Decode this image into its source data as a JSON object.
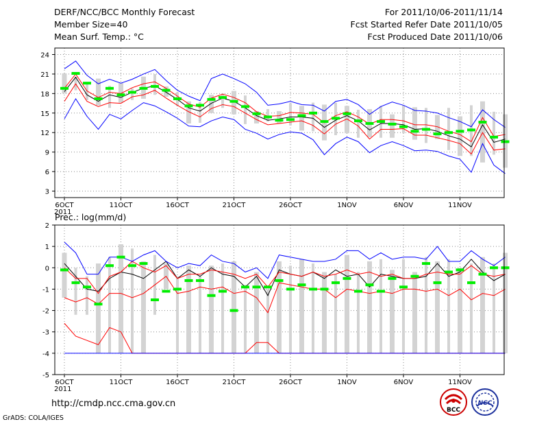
{
  "header": {
    "left": [
      "DERF/NCC/BCC Monthly Forecast",
      "Member Size=40",
      "Mean Surf. Temp.: °C"
    ],
    "right": [
      "For 2011/10/06-2011/11/14",
      "Fcst Started Refer Date 2011/10/05",
      "Fcst Produced Date 2011/10/06"
    ]
  },
  "footer": {
    "url": "http://cmdp.ncc.cma.gov.cn",
    "credit": "GrADS: COLA/IGES"
  },
  "logos": {
    "bcc": "BCC",
    "ncc": "NCC"
  },
  "colors": {
    "box": "#d3d3d3",
    "mean": "#000000",
    "spread": "#ff0000",
    "envelope": "#0000ff",
    "obs": "#00ee00"
  },
  "chart_data": [
    {
      "type": "line",
      "title": "Mean Surf. Temp.: °C",
      "x_tick_labels": [
        "6OCT",
        "11OCT",
        "16OCT",
        "21OCT",
        "26OCT",
        "1NOV",
        "6NOV",
        "11NOV"
      ],
      "x_tick_days": [
        0,
        5,
        10,
        15,
        20,
        25,
        30,
        35
      ],
      "x_year_label": "2011",
      "y_ticks": [
        "3",
        "6",
        "9",
        "12",
        "15",
        "18",
        "21",
        "24"
      ],
      "ylim": [
        2,
        25
      ],
      "days": [
        0,
        1,
        2,
        3,
        4,
        5,
        6,
        7,
        8,
        9,
        10,
        11,
        12,
        13,
        14,
        15,
        16,
        17,
        18,
        19,
        20,
        21,
        22,
        23,
        24,
        25,
        26,
        27,
        28,
        29,
        30,
        31,
        32,
        33,
        34,
        35,
        36,
        37,
        38,
        39
      ],
      "series": [
        {
          "name": "mean",
          "values": [
            18.3,
            20.5,
            17.8,
            16.8,
            17.8,
            17.4,
            18.2,
            18.8,
            19.2,
            18.2,
            17.1,
            15.8,
            15.3,
            16.5,
            17.3,
            16.8,
            15.8,
            14.6,
            13.9,
            14.1,
            14.4,
            14.4,
            14.2,
            12.8,
            13.9,
            14.6,
            13.8,
            12.4,
            13.4,
            13.4,
            13.2,
            12.5,
            12.6,
            12.2,
            11.5,
            11.0,
            9.8,
            13.2,
            10.5,
            11.0
          ]
        },
        {
          "name": "upper-spread",
          "values": [
            18.8,
            21.0,
            18.4,
            17.4,
            18.2,
            18.0,
            18.9,
            19.5,
            19.8,
            18.8,
            17.6,
            16.4,
            15.9,
            17.3,
            17.9,
            17.4,
            16.6,
            15.2,
            14.5,
            14.6,
            15.1,
            15.0,
            14.8,
            13.5,
            14.6,
            15.2,
            14.4,
            13.3,
            14.0,
            14.0,
            13.8,
            13.2,
            13.2,
            12.9,
            12.2,
            11.7,
            10.6,
            14.3,
            11.4,
            11.7
          ]
        },
        {
          "name": "lower-spread",
          "values": [
            16.8,
            19.5,
            16.8,
            16.0,
            16.6,
            16.5,
            17.5,
            17.8,
            18.5,
            17.3,
            16.2,
            15.2,
            14.4,
            15.7,
            16.3,
            16.0,
            15.0,
            14.0,
            13.2,
            13.4,
            13.6,
            13.8,
            13.1,
            11.8,
            13.3,
            14.1,
            13.0,
            11.0,
            12.5,
            12.5,
            12.6,
            11.6,
            11.6,
            11.2,
            10.8,
            10.3,
            8.7,
            12.0,
            9.3,
            9.5
          ]
        },
        {
          "name": "max-envelope",
          "values": [
            21.8,
            23.0,
            20.8,
            19.5,
            20.2,
            19.6,
            20.2,
            21.0,
            21.7,
            20.0,
            18.5,
            17.6,
            16.9,
            20.3,
            21.0,
            20.3,
            19.5,
            18.2,
            16.2,
            16.4,
            16.8,
            16.3,
            16.2,
            15.3,
            16.8,
            17.1,
            16.3,
            14.8,
            16.0,
            16.7,
            16.2,
            15.4,
            15.3,
            15.0,
            14.3,
            13.7,
            12.9,
            15.5,
            14.0,
            12.8
          ]
        },
        {
          "name": "min-envelope",
          "values": [
            14.1,
            17.2,
            14.5,
            12.5,
            14.8,
            14.1,
            15.4,
            16.6,
            16.1,
            15.2,
            14.2,
            13.0,
            12.9,
            13.8,
            14.4,
            14.0,
            12.5,
            11.9,
            11.0,
            11.7,
            12.1,
            11.9,
            10.9,
            8.6,
            10.3,
            11.3,
            10.6,
            8.9,
            10.0,
            10.6,
            10.0,
            9.2,
            9.3,
            9.1,
            8.4,
            7.9,
            5.9,
            10.3,
            7.0,
            5.7
          ]
        }
      ],
      "boxes": {
        "low": [
          18.0,
          18.5,
          17.0,
          16.2,
          15.8,
          16.6,
          17.0,
          17.2,
          17.8,
          17.5,
          16.1,
          13.4,
          13.5,
          15.0,
          15.8,
          14.8,
          13.3,
          13.4,
          13.7,
          13.4,
          13.1,
          12.3,
          12.2,
          10.8,
          11.6,
          11.9,
          11.2,
          11.3,
          11.2,
          11.2,
          11.9,
          10.9,
          10.4,
          11.0,
          9.3,
          8.4,
          8.4,
          7.4,
          8.6,
          6.6
        ],
        "high": [
          21.1,
          20.6,
          19.6,
          20.3,
          19.2,
          19.6,
          18.8,
          20.6,
          21.0,
          19.1,
          18.2,
          16.8,
          16.7,
          17.8,
          18.0,
          18.4,
          17.7,
          15.3,
          15.6,
          15.3,
          16.5,
          16.1,
          16.6,
          16.3,
          16.6,
          16.1,
          15.5,
          15.6,
          16.1,
          14.8,
          16.2,
          15.9,
          15.8,
          14.7,
          15.8,
          14.5,
          16.2,
          16.8,
          15.2,
          14.8
        ],
        "wide": [
          1,
          0,
          0,
          1,
          0,
          1,
          0,
          1,
          0,
          1,
          0,
          1,
          0,
          1,
          0,
          1,
          0,
          1,
          0,
          1,
          0,
          1,
          0,
          1,
          0,
          1,
          0,
          1,
          0,
          1,
          0,
          1,
          0,
          1,
          0,
          1,
          0,
          1,
          0,
          1
        ]
      },
      "observed": {
        "days": [
          0,
          1,
          2,
          3,
          4,
          5,
          6,
          7,
          8,
          9,
          10,
          11,
          12,
          13,
          14,
          15,
          16,
          17,
          18,
          19,
          20,
          21,
          22,
          23,
          24,
          25,
          26,
          27,
          28,
          29,
          30,
          31,
          32,
          33,
          34,
          35,
          36,
          37,
          38,
          39
        ],
        "values": [
          18.8,
          21.1,
          19.6,
          17.2,
          18.8,
          17.8,
          18.2,
          18.8,
          19.1,
          18.5,
          17.2,
          16.1,
          16.2,
          17.1,
          17.4,
          16.8,
          16.0,
          14.9,
          14.4,
          13.9,
          14.0,
          14.6,
          15.0,
          13.7,
          14.2,
          14.9,
          13.8,
          13.4,
          13.7,
          13.3,
          12.9,
          12.2,
          12.5,
          11.8,
          12.0,
          12.2,
          12.4,
          13.6,
          11.3,
          10.6
        ]
      }
    },
    {
      "type": "line",
      "title": "Prec.: log(mm/d)",
      "x_tick_labels": [
        "6OCT",
        "11OCT",
        "16OCT",
        "21OCT",
        "26OCT",
        "1NOV",
        "6NOV",
        "11NOV"
      ],
      "x_tick_days": [
        0,
        5,
        10,
        15,
        20,
        25,
        30,
        35
      ],
      "x_year_label": "2011",
      "y_ticks": [
        "-5",
        "-4",
        "-3",
        "-2",
        "-1",
        "0",
        "1",
        "2"
      ],
      "ylim": [
        -5,
        2
      ],
      "days": [
        0,
        1,
        2,
        3,
        4,
        5,
        6,
        7,
        8,
        9,
        10,
        11,
        12,
        13,
        14,
        15,
        16,
        17,
        18,
        19,
        20,
        21,
        22,
        23,
        24,
        25,
        26,
        27,
        28,
        29,
        30,
        31,
        32,
        33,
        34,
        35,
        36,
        37,
        38,
        39
      ],
      "series": [
        {
          "name": "mean",
          "values": [
            0.2,
            -0.4,
            -1.0,
            -1.1,
            -0.5,
            -0.2,
            -0.3,
            -0.5,
            -0.1,
            0.3,
            -0.5,
            -0.1,
            -0.4,
            0.0,
            -0.3,
            -0.4,
            -0.9,
            -0.4,
            -1.3,
            -0.1,
            -0.3,
            -0.4,
            -0.2,
            -0.5,
            -0.1,
            -0.4,
            -0.3,
            -0.9,
            -0.3,
            -0.4,
            -0.5,
            -0.5,
            -0.4,
            0.2,
            -0.4,
            -0.2,
            0.4,
            -0.2,
            -0.6,
            -0.3
          ]
        },
        {
          "name": "upper-spread",
          "values": [
            0.0,
            -0.5,
            -0.5,
            -1.2,
            -0.4,
            -0.2,
            0.3,
            0.0,
            -0.2,
            0.1,
            -0.5,
            -0.3,
            -0.3,
            -0.1,
            -0.2,
            -0.3,
            -0.5,
            -0.3,
            -0.9,
            -0.2,
            -0.3,
            -0.4,
            -0.2,
            -0.4,
            -0.3,
            -0.1,
            -0.3,
            -0.2,
            -0.4,
            -0.3,
            -0.5,
            -0.5,
            -0.3,
            -0.2,
            -0.3,
            -0.3,
            0.1,
            -0.3,
            -0.4,
            -0.3
          ]
        },
        {
          "name": "lower-spread",
          "values": [
            -2.6,
            -3.2,
            -3.4,
            -3.6,
            -2.8,
            -3.0,
            -4.0,
            -4.0,
            -4.0,
            -4.0,
            -4.0,
            -4.0,
            -4.0,
            -4.0,
            -4.0,
            -4.0,
            -4.0,
            -3.5,
            -3.5,
            -4.0,
            -4.0,
            -4.0,
            -4.0,
            -4.0,
            -4.0,
            -4.0,
            -4.0,
            -4.0,
            -4.0,
            -4.0,
            -4.0,
            -4.0,
            -4.0,
            -4.0,
            -4.0,
            -4.0,
            -4.0,
            -4.0,
            -4.0,
            -4.0
          ]
        },
        {
          "name": "spread-inner",
          "values": [
            -1.4,
            -1.6,
            -1.4,
            -1.7,
            -1.2,
            -1.2,
            -1.4,
            -1.2,
            -0.8,
            -0.4,
            -1.2,
            -1.1,
            -0.9,
            -1.0,
            -0.9,
            -1.2,
            -1.1,
            -1.4,
            -2.1,
            -0.7,
            -0.8,
            -0.9,
            -1.0,
            -1.0,
            -1.4,
            -1.0,
            -1.1,
            -1.2,
            -1.1,
            -1.2,
            -1.0,
            -1.0,
            -1.1,
            -1.0,
            -1.3,
            -1.0,
            -1.5,
            -1.2,
            -1.3,
            -1.0
          ]
        },
        {
          "name": "max-envelope",
          "values": [
            1.2,
            0.7,
            -0.3,
            -0.3,
            0.5,
            0.5,
            0.3,
            0.6,
            0.8,
            0.3,
            0.0,
            0.2,
            0.1,
            0.6,
            0.3,
            0.2,
            -0.2,
            0.0,
            -0.5,
            0.6,
            0.5,
            0.4,
            0.3,
            0.3,
            0.4,
            0.8,
            0.8,
            0.4,
            0.7,
            0.4,
            0.5,
            0.5,
            0.4,
            1.0,
            0.3,
            0.3,
            0.8,
            0.4,
            0.1,
            0.5
          ]
        },
        {
          "name": "min-envelope",
          "values": [
            -4.0,
            -4.0,
            -4.0,
            -4.0,
            -4.0,
            -4.0,
            -4.0,
            -4.0,
            -4.0,
            -4.0,
            -4.0,
            -4.0,
            -4.0,
            -4.0,
            -4.0,
            -4.0,
            -4.0,
            -4.0,
            -4.0,
            -4.0,
            -4.0,
            -4.0,
            -4.0,
            -4.0,
            -4.0,
            -4.0,
            -4.0,
            -4.0,
            -4.0,
            -4.0,
            -4.0,
            -4.0,
            -4.0,
            -4.0,
            -4.0,
            -4.0,
            -4.0,
            -4.0,
            -4.0,
            -4.0
          ]
        }
      ],
      "boxes": {
        "low": [
          -1.4,
          -2.2,
          -2.2,
          -4.0,
          -4.0,
          -4.0,
          -4.0,
          -4.0,
          -2.2,
          -1.0,
          -4.0,
          -4.0,
          -4.0,
          -4.0,
          -4.0,
          -4.0,
          -4.0,
          -4.0,
          -4.0,
          -4.0,
          -4.0,
          -4.0,
          -4.0,
          -4.0,
          -4.0,
          -4.0,
          -4.0,
          -4.0,
          -4.0,
          -4.0,
          -4.0,
          -4.0,
          -4.0,
          -4.0,
          -4.0,
          -4.0,
          -4.0,
          -4.0,
          -4.0,
          -4.0
        ],
        "high": [
          0.7,
          0.0,
          -0.4,
          0.2,
          0.5,
          1.1,
          0.9,
          0.3,
          0.6,
          0.2,
          -0.4,
          0.1,
          -0.4,
          0.1,
          0.2,
          0.3,
          -0.8,
          -0.2,
          -1.0,
          0.3,
          0.1,
          0.4,
          0.2,
          -0.2,
          -0.3,
          0.6,
          -0.2,
          0.3,
          0.4,
          -0.1,
          0.4,
          -0.2,
          0.5,
          0.3,
          0.4,
          0.0,
          0.2,
          0.5,
          0.2,
          0.7
        ],
        "wide": [
          1,
          0,
          0,
          1,
          0,
          1,
          0,
          1,
          0,
          1,
          0,
          1,
          0,
          1,
          0,
          1,
          0,
          1,
          0,
          1,
          0,
          1,
          0,
          1,
          0,
          1,
          0,
          1,
          0,
          1,
          0,
          1,
          0,
          1,
          0,
          1,
          0,
          1,
          0,
          1
        ]
      },
      "observed": {
        "days": [
          0,
          1,
          2,
          3,
          4,
          5,
          6,
          7,
          8,
          9,
          10,
          11,
          12,
          13,
          14,
          15,
          16,
          17,
          18,
          19,
          20,
          21,
          22,
          23,
          24,
          25,
          26,
          27,
          28,
          29,
          30,
          31,
          32,
          33,
          34,
          35,
          36,
          37,
          38,
          39
        ],
        "values": [
          -0.1,
          -0.7,
          -0.9,
          -1.7,
          0.1,
          0.5,
          0.1,
          0.2,
          -1.5,
          -1.1,
          -1.0,
          -0.6,
          -0.6,
          -1.3,
          -1.1,
          -2.0,
          -0.9,
          -0.9,
          -0.9,
          -0.6,
          -1.0,
          -0.8,
          -1.0,
          -1.0,
          -0.7,
          -0.5,
          -1.1,
          -0.8,
          -1.1,
          -0.5,
          -0.9,
          -0.4,
          0.2,
          -0.7,
          -0.2,
          -0.1,
          -0.7,
          -0.3,
          0.0,
          0.0
        ]
      }
    }
  ]
}
